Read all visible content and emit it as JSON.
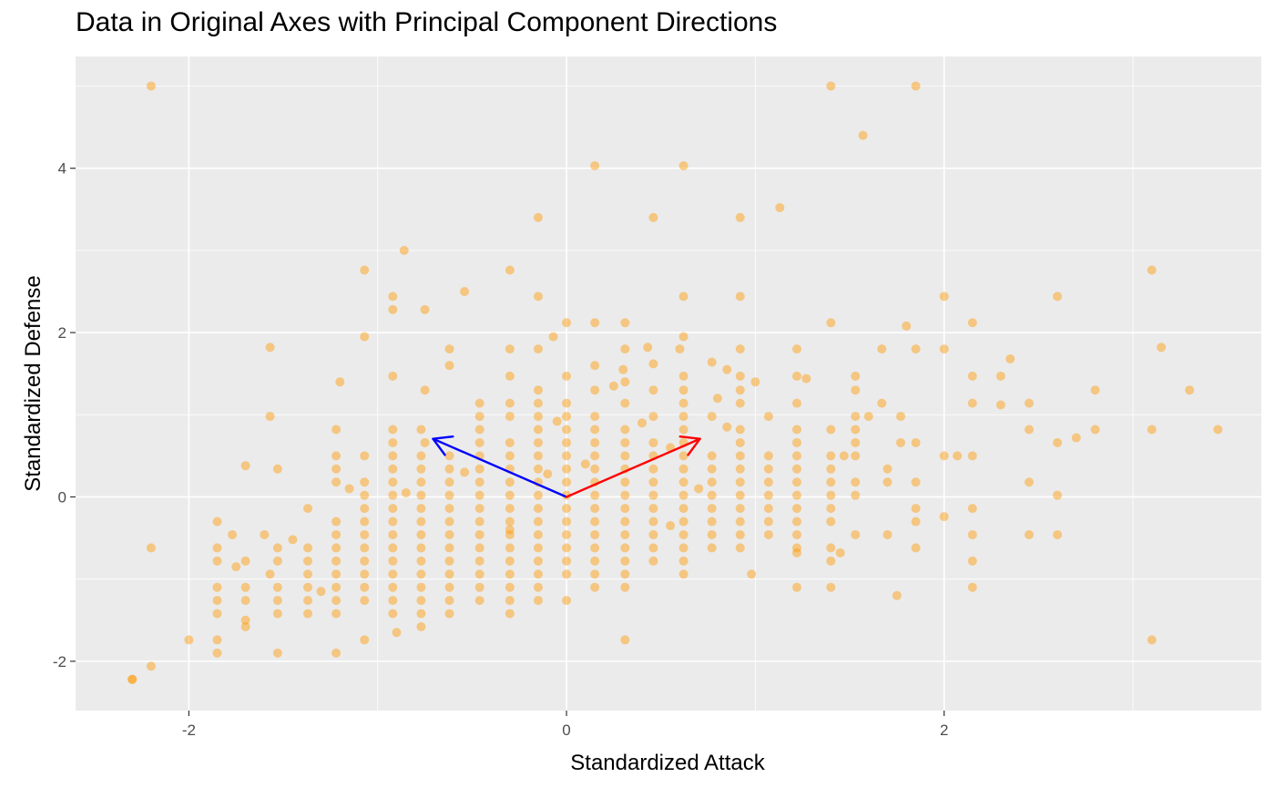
{
  "chart_data": {
    "type": "scatter",
    "title": "Data in Original Axes with Principal Component Directions",
    "xlabel": "Standardized Attack",
    "ylabel": "Standardized Defense",
    "xlim": [
      -2.6,
      3.68
    ],
    "ylim": [
      -2.6,
      5.36
    ],
    "x_ticks": [
      -2,
      0,
      2
    ],
    "y_ticks": [
      -2,
      0,
      2,
      4
    ],
    "grid": true,
    "point_color": "#FF9900",
    "point_opacity": 0.45,
    "arrows": [
      {
        "color": "#0000FF",
        "from": [
          0,
          0
        ],
        "to": [
          -0.707,
          0.707
        ]
      },
      {
        "color": "#FF0000",
        "from": [
          0,
          0
        ],
        "to": [
          0.707,
          0.707
        ]
      }
    ],
    "points": [
      [
        -2.2,
        5.0
      ],
      [
        1.4,
        5.0
      ],
      [
        1.85,
        5.0
      ],
      [
        1.57,
        4.4
      ],
      [
        0.15,
        4.03
      ],
      [
        0.62,
        4.03
      ],
      [
        1.13,
        3.52
      ],
      [
        -0.15,
        3.4
      ],
      [
        0.46,
        3.4
      ],
      [
        0.92,
        3.4
      ],
      [
        -0.86,
        3.0
      ],
      [
        -1.07,
        2.76
      ],
      [
        -0.3,
        2.76
      ],
      [
        3.1,
        2.76
      ],
      [
        -0.54,
        2.5
      ],
      [
        -0.92,
        2.44
      ],
      [
        -0.15,
        2.44
      ],
      [
        0.62,
        2.44
      ],
      [
        0.92,
        2.44
      ],
      [
        2.0,
        2.44
      ],
      [
        2.6,
        2.44
      ],
      [
        -0.92,
        2.28
      ],
      [
        -0.75,
        2.28
      ],
      [
        0.0,
        2.12
      ],
      [
        0.15,
        2.12
      ],
      [
        0.31,
        2.12
      ],
      [
        1.4,
        2.12
      ],
      [
        2.15,
        2.12
      ],
      [
        1.8,
        2.08
      ],
      [
        -0.07,
        1.95
      ],
      [
        -1.07,
        1.95
      ],
      [
        0.62,
        1.95
      ],
      [
        0.31,
        1.8
      ],
      [
        0.6,
        1.8
      ],
      [
        0.92,
        1.8
      ],
      [
        1.22,
        1.8
      ],
      [
        1.67,
        1.8
      ],
      [
        1.85,
        1.8
      ],
      [
        2.0,
        1.8
      ],
      [
        -0.15,
        1.8
      ],
      [
        -0.3,
        1.8
      ],
      [
        -0.62,
        1.8
      ],
      [
        -1.57,
        1.82
      ],
      [
        3.15,
        1.82
      ],
      [
        0.43,
        1.82
      ],
      [
        2.35,
        1.68
      ],
      [
        0.77,
        1.64
      ],
      [
        0.46,
        1.62
      ],
      [
        0.15,
        1.6
      ],
      [
        -0.62,
        1.6
      ],
      [
        0.85,
        1.55
      ],
      [
        0.3,
        1.55
      ],
      [
        1.22,
        1.47
      ],
      [
        1.53,
        1.47
      ],
      [
        2.15,
        1.47
      ],
      [
        2.3,
        1.47
      ],
      [
        -0.92,
        1.47
      ],
      [
        -0.3,
        1.47
      ],
      [
        0.0,
        1.47
      ],
      [
        0.62,
        1.47
      ],
      [
        0.92,
        1.47
      ],
      [
        1.27,
        1.44
      ],
      [
        -1.2,
        1.4
      ],
      [
        0.31,
        1.4
      ],
      [
        1.0,
        1.4
      ],
      [
        -0.75,
        1.3
      ],
      [
        -0.15,
        1.3
      ],
      [
        0.15,
        1.3
      ],
      [
        0.46,
        1.3
      ],
      [
        0.62,
        1.3
      ],
      [
        0.92,
        1.3
      ],
      [
        1.53,
        1.3
      ],
      [
        2.8,
        1.3
      ],
      [
        3.3,
        1.3
      ],
      [
        0.25,
        1.35
      ],
      [
        0.8,
        1.2
      ],
      [
        1.22,
        1.14
      ],
      [
        1.67,
        1.14
      ],
      [
        2.15,
        1.14
      ],
      [
        2.3,
        1.12
      ],
      [
        2.45,
        1.14
      ],
      [
        -0.15,
        1.14
      ],
      [
        0.0,
        1.14
      ],
      [
        0.31,
        1.14
      ],
      [
        0.62,
        1.14
      ],
      [
        -0.46,
        1.14
      ],
      [
        -0.3,
        1.14
      ],
      [
        0.92,
        1.14
      ],
      [
        -1.57,
        0.98
      ],
      [
        -0.46,
        0.98
      ],
      [
        -0.3,
        0.98
      ],
      [
        -0.15,
        0.98
      ],
      [
        0.0,
        0.98
      ],
      [
        0.15,
        0.98
      ],
      [
        0.46,
        0.98
      ],
      [
        0.62,
        0.98
      ],
      [
        0.77,
        0.98
      ],
      [
        1.07,
        0.98
      ],
      [
        1.53,
        0.98
      ],
      [
        1.77,
        0.98
      ],
      [
        1.6,
        0.98
      ],
      [
        -0.05,
        0.92
      ],
      [
        0.4,
        0.9
      ],
      [
        -0.92,
        0.82
      ],
      [
        -0.77,
        0.82
      ],
      [
        -0.46,
        0.82
      ],
      [
        -0.15,
        0.82
      ],
      [
        0.0,
        0.82
      ],
      [
        0.15,
        0.82
      ],
      [
        0.31,
        0.82
      ],
      [
        0.62,
        0.82
      ],
      [
        0.92,
        0.82
      ],
      [
        1.22,
        0.82
      ],
      [
        1.4,
        0.82
      ],
      [
        1.53,
        0.82
      ],
      [
        2.45,
        0.82
      ],
      [
        2.8,
        0.82
      ],
      [
        3.1,
        0.82
      ],
      [
        3.45,
        0.82
      ],
      [
        -1.22,
        0.82
      ],
      [
        0.85,
        0.85
      ],
      [
        -0.92,
        0.66
      ],
      [
        -0.75,
        0.66
      ],
      [
        -0.46,
        0.66
      ],
      [
        -0.3,
        0.66
      ],
      [
        -0.15,
        0.66
      ],
      [
        0.0,
        0.66
      ],
      [
        0.15,
        0.66
      ],
      [
        0.31,
        0.66
      ],
      [
        0.46,
        0.66
      ],
      [
        0.62,
        0.66
      ],
      [
        0.92,
        0.66
      ],
      [
        1.22,
        0.66
      ],
      [
        1.53,
        0.66
      ],
      [
        1.77,
        0.66
      ],
      [
        1.85,
        0.66
      ],
      [
        2.6,
        0.66
      ],
      [
        2.7,
        0.72
      ],
      [
        0.55,
        0.6
      ],
      [
        -0.92,
        0.5
      ],
      [
        -1.22,
        0.5
      ],
      [
        -1.07,
        0.5
      ],
      [
        -0.77,
        0.5
      ],
      [
        -0.62,
        0.5
      ],
      [
        -0.46,
        0.5
      ],
      [
        -0.3,
        0.5
      ],
      [
        -0.15,
        0.5
      ],
      [
        0.0,
        0.5
      ],
      [
        0.15,
        0.5
      ],
      [
        0.31,
        0.5
      ],
      [
        0.46,
        0.5
      ],
      [
        0.62,
        0.5
      ],
      [
        0.77,
        0.5
      ],
      [
        0.92,
        0.5
      ],
      [
        1.07,
        0.5
      ],
      [
        1.22,
        0.5
      ],
      [
        1.4,
        0.5
      ],
      [
        1.53,
        0.5
      ],
      [
        2.0,
        0.5
      ],
      [
        2.07,
        0.5
      ],
      [
        2.15,
        0.5
      ],
      [
        1.47,
        0.5
      ],
      [
        -1.22,
        0.34
      ],
      [
        -1.53,
        0.34
      ],
      [
        -0.92,
        0.34
      ],
      [
        -0.77,
        0.34
      ],
      [
        -0.62,
        0.34
      ],
      [
        -0.46,
        0.34
      ],
      [
        -0.3,
        0.34
      ],
      [
        -0.15,
        0.34
      ],
      [
        0.0,
        0.34
      ],
      [
        0.15,
        0.34
      ],
      [
        0.31,
        0.34
      ],
      [
        0.46,
        0.34
      ],
      [
        0.62,
        0.34
      ],
      [
        0.77,
        0.34
      ],
      [
        0.92,
        0.34
      ],
      [
        1.07,
        0.34
      ],
      [
        1.22,
        0.34
      ],
      [
        1.4,
        0.34
      ],
      [
        1.7,
        0.34
      ],
      [
        -1.7,
        0.38
      ],
      [
        -0.54,
        0.3
      ],
      [
        -0.1,
        0.28
      ],
      [
        0.1,
        0.4
      ],
      [
        -0.92,
        0.18
      ],
      [
        -1.07,
        0.18
      ],
      [
        -1.22,
        0.18
      ],
      [
        -0.77,
        0.18
      ],
      [
        -0.62,
        0.18
      ],
      [
        -0.46,
        0.18
      ],
      [
        -0.3,
        0.18
      ],
      [
        -0.15,
        0.18
      ],
      [
        0.0,
        0.18
      ],
      [
        0.15,
        0.18
      ],
      [
        0.31,
        0.18
      ],
      [
        0.46,
        0.18
      ],
      [
        0.62,
        0.18
      ],
      [
        0.77,
        0.18
      ],
      [
        0.92,
        0.18
      ],
      [
        1.07,
        0.18
      ],
      [
        1.22,
        0.18
      ],
      [
        1.4,
        0.18
      ],
      [
        1.53,
        0.18
      ],
      [
        1.85,
        0.18
      ],
      [
        2.45,
        0.18
      ],
      [
        1.7,
        0.18
      ],
      [
        -1.15,
        0.1
      ],
      [
        0.7,
        0.1
      ],
      [
        -1.07,
        0.02
      ],
      [
        -0.92,
        0.02
      ],
      [
        -0.77,
        0.02
      ],
      [
        -0.62,
        0.02
      ],
      [
        -0.46,
        0.02
      ],
      [
        -0.3,
        0.02
      ],
      [
        -0.15,
        0.02
      ],
      [
        0.0,
        0.02
      ],
      [
        0.15,
        0.02
      ],
      [
        0.31,
        0.02
      ],
      [
        0.46,
        0.02
      ],
      [
        0.62,
        0.02
      ],
      [
        0.77,
        0.02
      ],
      [
        0.92,
        0.02
      ],
      [
        1.07,
        0.02
      ],
      [
        1.22,
        0.02
      ],
      [
        1.4,
        0.02
      ],
      [
        1.53,
        0.02
      ],
      [
        2.6,
        0.02
      ],
      [
        -0.85,
        0.05
      ],
      [
        -1.37,
        -0.14
      ],
      [
        -0.92,
        -0.14
      ],
      [
        -1.07,
        -0.14
      ],
      [
        -0.77,
        -0.14
      ],
      [
        -0.62,
        -0.14
      ],
      [
        -0.46,
        -0.14
      ],
      [
        -0.3,
        -0.14
      ],
      [
        -0.15,
        -0.14
      ],
      [
        0.0,
        -0.14
      ],
      [
        0.15,
        -0.14
      ],
      [
        0.31,
        -0.14
      ],
      [
        0.46,
        -0.14
      ],
      [
        0.62,
        -0.14
      ],
      [
        0.77,
        -0.14
      ],
      [
        0.92,
        -0.14
      ],
      [
        1.07,
        -0.14
      ],
      [
        1.22,
        -0.14
      ],
      [
        1.4,
        -0.14
      ],
      [
        1.85,
        -0.14
      ],
      [
        2.15,
        -0.14
      ],
      [
        -0.92,
        -0.3
      ],
      [
        -1.07,
        -0.3
      ],
      [
        -1.22,
        -0.3
      ],
      [
        -0.77,
        -0.3
      ],
      [
        -0.62,
        -0.3
      ],
      [
        -0.46,
        -0.3
      ],
      [
        -0.3,
        -0.3
      ],
      [
        -0.15,
        -0.3
      ],
      [
        0.0,
        -0.3
      ],
      [
        0.15,
        -0.3
      ],
      [
        0.31,
        -0.3
      ],
      [
        0.46,
        -0.3
      ],
      [
        0.62,
        -0.3
      ],
      [
        0.77,
        -0.3
      ],
      [
        0.92,
        -0.3
      ],
      [
        1.07,
        -0.3
      ],
      [
        1.22,
        -0.3
      ],
      [
        1.4,
        -0.3
      ],
      [
        1.85,
        -0.3
      ],
      [
        -1.85,
        -0.3
      ],
      [
        2.0,
        -0.24
      ],
      [
        0.55,
        -0.35
      ],
      [
        -0.3,
        -0.4
      ],
      [
        -1.22,
        -0.46
      ],
      [
        -0.92,
        -0.46
      ],
      [
        -1.07,
        -0.46
      ],
      [
        -0.77,
        -0.46
      ],
      [
        -0.62,
        -0.46
      ],
      [
        -0.46,
        -0.46
      ],
      [
        -0.3,
        -0.46
      ],
      [
        -0.15,
        -0.46
      ],
      [
        0.0,
        -0.46
      ],
      [
        0.15,
        -0.46
      ],
      [
        0.31,
        -0.46
      ],
      [
        0.46,
        -0.46
      ],
      [
        0.62,
        -0.46
      ],
      [
        0.77,
        -0.46
      ],
      [
        0.92,
        -0.46
      ],
      [
        1.07,
        -0.46
      ],
      [
        1.22,
        -0.46
      ],
      [
        1.53,
        -0.46
      ],
      [
        1.7,
        -0.46
      ],
      [
        2.15,
        -0.46
      ],
      [
        2.45,
        -0.46
      ],
      [
        2.6,
        -0.46
      ],
      [
        -1.6,
        -0.46
      ],
      [
        -1.77,
        -0.46
      ],
      [
        -2.2,
        -0.62
      ],
      [
        -1.85,
        -0.62
      ],
      [
        -1.53,
        -0.62
      ],
      [
        -1.37,
        -0.62
      ],
      [
        -1.22,
        -0.62
      ],
      [
        -1.07,
        -0.62
      ],
      [
        -0.92,
        -0.62
      ],
      [
        -0.77,
        -0.62
      ],
      [
        -0.62,
        -0.62
      ],
      [
        -0.46,
        -0.62
      ],
      [
        -0.3,
        -0.62
      ],
      [
        -0.15,
        -0.62
      ],
      [
        0.0,
        -0.62
      ],
      [
        0.15,
        -0.62
      ],
      [
        0.31,
        -0.62
      ],
      [
        0.46,
        -0.62
      ],
      [
        0.62,
        -0.62
      ],
      [
        0.77,
        -0.62
      ],
      [
        0.92,
        -0.62
      ],
      [
        1.22,
        -0.62
      ],
      [
        1.4,
        -0.62
      ],
      [
        1.85,
        -0.62
      ],
      [
        -1.45,
        -0.52
      ],
      [
        1.45,
        -0.68
      ],
      [
        -1.85,
        -0.78
      ],
      [
        -1.7,
        -0.78
      ],
      [
        -1.53,
        -0.78
      ],
      [
        -1.37,
        -0.78
      ],
      [
        -1.22,
        -0.78
      ],
      [
        -1.07,
        -0.78
      ],
      [
        -0.92,
        -0.78
      ],
      [
        -0.77,
        -0.78
      ],
      [
        -0.62,
        -0.78
      ],
      [
        -0.46,
        -0.78
      ],
      [
        -0.3,
        -0.78
      ],
      [
        -0.15,
        -0.78
      ],
      [
        0.0,
        -0.78
      ],
      [
        0.15,
        -0.78
      ],
      [
        0.31,
        -0.78
      ],
      [
        0.46,
        -0.78
      ],
      [
        0.62,
        -0.78
      ],
      [
        1.4,
        -0.78
      ],
      [
        1.22,
        -0.68
      ],
      [
        2.15,
        -0.78
      ],
      [
        -1.75,
        -0.85
      ],
      [
        -1.57,
        -0.94
      ],
      [
        -1.37,
        -0.94
      ],
      [
        -1.22,
        -0.94
      ],
      [
        -1.07,
        -0.94
      ],
      [
        -0.92,
        -0.94
      ],
      [
        -0.77,
        -0.94
      ],
      [
        -0.62,
        -0.94
      ],
      [
        -0.46,
        -0.94
      ],
      [
        -0.3,
        -0.94
      ],
      [
        -0.15,
        -0.94
      ],
      [
        0.0,
        -0.94
      ],
      [
        0.15,
        -0.94
      ],
      [
        0.31,
        -0.94
      ],
      [
        0.62,
        -0.94
      ],
      [
        0.98,
        -0.94
      ],
      [
        -1.53,
        -1.1
      ],
      [
        -1.37,
        -1.1
      ],
      [
        -1.22,
        -1.1
      ],
      [
        -1.07,
        -1.1
      ],
      [
        -0.92,
        -1.1
      ],
      [
        -0.77,
        -1.1
      ],
      [
        -0.62,
        -1.1
      ],
      [
        -0.46,
        -1.1
      ],
      [
        -0.3,
        -1.1
      ],
      [
        -0.15,
        -1.1
      ],
      [
        0.15,
        -1.1
      ],
      [
        0.31,
        -1.1
      ],
      [
        1.22,
        -1.1
      ],
      [
        1.4,
        -1.1
      ],
      [
        2.15,
        -1.1
      ],
      [
        -1.85,
        -1.1
      ],
      [
        -1.7,
        -1.1
      ],
      [
        -1.3,
        -1.15
      ],
      [
        -1.53,
        -1.26
      ],
      [
        -1.37,
        -1.26
      ],
      [
        -1.22,
        -1.26
      ],
      [
        -1.07,
        -1.26
      ],
      [
        -0.92,
        -1.26
      ],
      [
        -0.77,
        -1.26
      ],
      [
        -0.62,
        -1.26
      ],
      [
        -0.46,
        -1.26
      ],
      [
        -0.3,
        -1.26
      ],
      [
        -0.15,
        -1.26
      ],
      [
        0.0,
        -1.26
      ],
      [
        -1.85,
        -1.26
      ],
      [
        -1.7,
        -1.26
      ],
      [
        1.75,
        -1.2
      ],
      [
        -1.53,
        -1.42
      ],
      [
        -1.37,
        -1.42
      ],
      [
        -1.22,
        -1.42
      ],
      [
        -0.92,
        -1.42
      ],
      [
        -0.77,
        -1.42
      ],
      [
        -0.62,
        -1.42
      ],
      [
        -0.3,
        -1.42
      ],
      [
        -1.85,
        -1.42
      ],
      [
        -1.7,
        -1.5
      ],
      [
        -1.7,
        -1.58
      ],
      [
        -0.77,
        -1.58
      ],
      [
        -0.9,
        -1.65
      ],
      [
        -1.85,
        -1.74
      ],
      [
        -2.0,
        -1.74
      ],
      [
        -1.07,
        -1.74
      ],
      [
        0.31,
        -1.74
      ],
      [
        3.1,
        -1.74
      ],
      [
        -1.85,
        -1.9
      ],
      [
        -1.53,
        -1.9
      ],
      [
        -1.22,
        -1.9
      ],
      [
        -2.2,
        -2.06
      ],
      [
        -2.3,
        -2.22
      ],
      [
        -2.3,
        -2.22
      ]
    ]
  }
}
